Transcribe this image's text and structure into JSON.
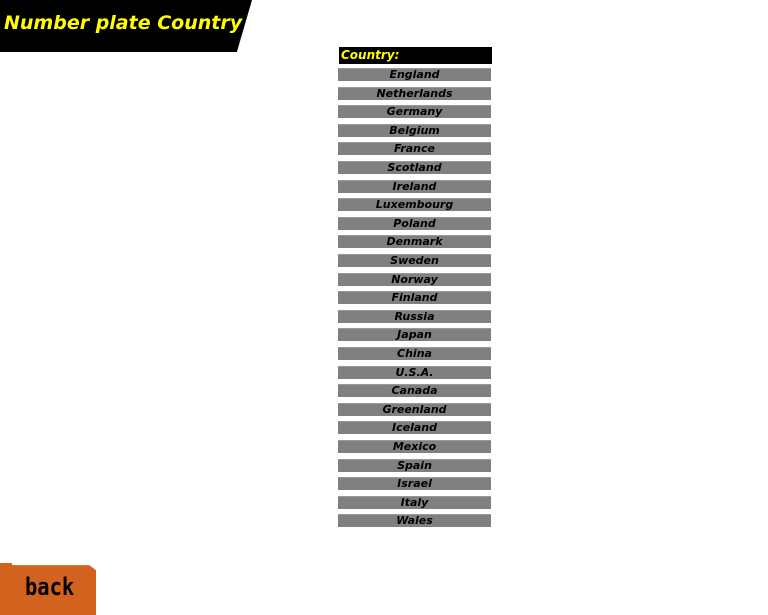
{
  "header": {
    "title": "Number plate Country"
  },
  "list": {
    "heading": "Country:",
    "items": [
      "England",
      "Netherlands",
      "Germany",
      "Belgium",
      "France",
      "Scotland",
      "Ireland",
      "Luxembourg",
      "Poland",
      "Denmark",
      "Sweden",
      "Norway",
      "Finland",
      "Russia",
      "Japan",
      "China",
      "U.S.A.",
      "Canada",
      "Greenland",
      "Iceland",
      "Mexico",
      "Spain",
      "Israel",
      "Italy",
      "Wales"
    ]
  },
  "footer": {
    "back_label": "back"
  },
  "colors": {
    "title_text": "#ffff00",
    "row_bg": "#808080",
    "back_button": "#d4621f"
  }
}
